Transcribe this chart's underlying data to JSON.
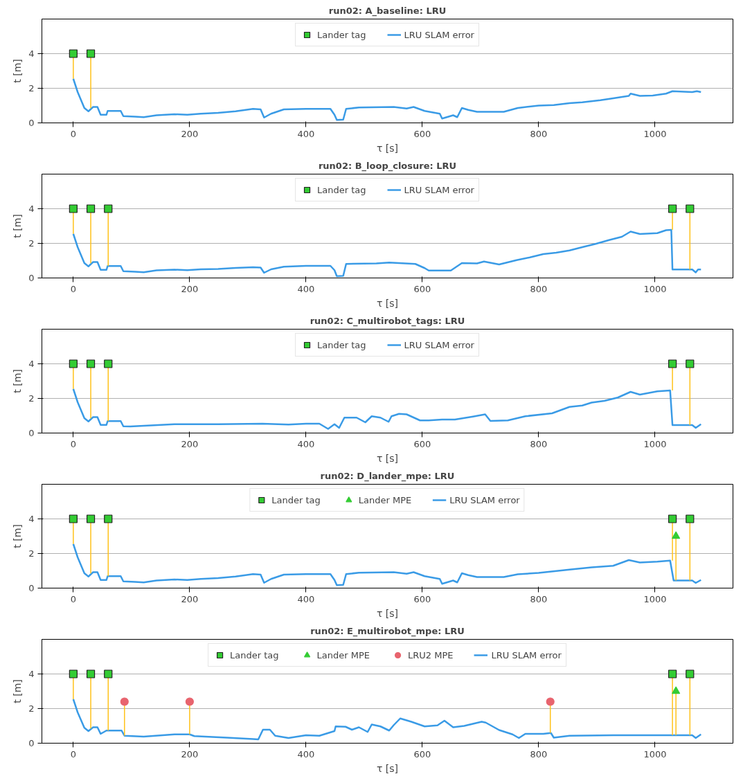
{
  "chart_data": [
    {
      "type": "line",
      "title": "run02: A_baseline: LRU",
      "xlabel": "τ [s]",
      "ylabel": "t [m]",
      "xlim": [
        -54,
        1134
      ],
      "xticks": [
        0,
        200,
        400,
        600,
        800,
        1000
      ],
      "ylim": [
        0,
        6
      ],
      "yticks": [
        0,
        2,
        4
      ],
      "grid": "y",
      "legend": "top",
      "series": [
        {
          "name": "Lander tag",
          "type": "scatter",
          "marker": "square",
          "color": "#33cc33",
          "x": [
            0,
            30
          ],
          "values": [
            4,
            4
          ],
          "errors": [
            [
              2.55,
              4
            ],
            [
              0.85,
              4
            ]
          ]
        },
        {
          "name": "LRU SLAM error",
          "color": "#3a9be6",
          "x": [
            0,
            7.5,
            19,
            26,
            34,
            41.5,
            47,
            57,
            59,
            81.5,
            86,
            106,
            121,
            143,
            174,
            196,
            219,
            249,
            279,
            309,
            322,
            328,
            340,
            362,
            400,
            442,
            449,
            453,
            464,
            469,
            491,
            551,
            573,
            585,
            604,
            630,
            634,
            653,
            660,
            668,
            679,
            694,
            740,
            764,
            800,
            826,
            853,
            875,
            906,
            928,
            955,
            958,
            974,
            996,
            1019,
            1030,
            1064,
            1072,
            1079
          ],
          "values": [
            2.55,
            1.78,
            0.86,
            0.67,
            0.92,
            0.92,
            0.47,
            0.47,
            0.69,
            0.69,
            0.39,
            0.36,
            0.33,
            0.44,
            0.5,
            0.47,
            0.53,
            0.58,
            0.67,
            0.81,
            0.78,
            0.31,
            0.53,
            0.78,
            0.81,
            0.81,
            0.47,
            0.17,
            0.19,
            0.81,
            0.89,
            0.92,
            0.83,
            0.92,
            0.69,
            0.53,
            0.25,
            0.44,
            0.33,
            0.86,
            0.75,
            0.64,
            0.64,
            0.86,
            1.0,
            1.03,
            1.14,
            1.19,
            1.31,
            1.42,
            1.56,
            1.69,
            1.56,
            1.58,
            1.69,
            1.83,
            1.78,
            1.83,
            1.78
          ]
        }
      ]
    },
    {
      "type": "line",
      "title": "run02: B_loop_closure: LRU",
      "xlabel": "τ [s]",
      "ylabel": "t [m]",
      "xlim": [
        -54,
        1134
      ],
      "xticks": [
        0,
        200,
        400,
        600,
        800,
        1000
      ],
      "ylim": [
        0,
        6
      ],
      "yticks": [
        0,
        2,
        4
      ],
      "grid": "y",
      "legend": "top",
      "series": [
        {
          "name": "Lander tag",
          "type": "scatter",
          "marker": "square",
          "color": "#33cc33",
          "x": [
            0,
            30,
            60,
            1030,
            1060
          ],
          "values": [
            4,
            4,
            4,
            4,
            4
          ],
          "errors": [
            [
              2.55,
              4
            ],
            [
              0.85,
              4
            ],
            [
              0.69,
              4
            ],
            [
              2.78,
              4
            ],
            [
              0.49,
              4
            ]
          ]
        },
        {
          "name": "LRU SLAM error",
          "color": "#3a9be6",
          "x": [
            0,
            7.5,
            19,
            26,
            34,
            41.5,
            47,
            57,
            59,
            81.5,
            86,
            106,
            121,
            143,
            174,
            196,
            219,
            249,
            279,
            309,
            322,
            328,
            340,
            362,
            400,
            442,
            449,
            453,
            464,
            469,
            521,
            543,
            588,
            604,
            611,
            649,
            668,
            694,
            706,
            732,
            762,
            785,
            808,
            830,
            853,
            875,
            898,
            921,
            943,
            958,
            974,
            1004,
            1019,
            1028,
            1030,
            1064,
            1070,
            1074,
            1079
          ],
          "values": [
            2.55,
            1.78,
            0.86,
            0.67,
            0.92,
            0.92,
            0.47,
            0.47,
            0.69,
            0.69,
            0.39,
            0.36,
            0.33,
            0.44,
            0.48,
            0.45,
            0.5,
            0.52,
            0.58,
            0.62,
            0.6,
            0.3,
            0.5,
            0.65,
            0.7,
            0.7,
            0.45,
            0.1,
            0.12,
            0.81,
            0.84,
            0.89,
            0.81,
            0.57,
            0.43,
            0.43,
            0.86,
            0.84,
            0.95,
            0.78,
            1.03,
            1.19,
            1.38,
            1.46,
            1.59,
            1.78,
            1.97,
            2.19,
            2.38,
            2.68,
            2.54,
            2.59,
            2.76,
            2.78,
            0.49,
            0.49,
            0.32,
            0.49,
            0.49
          ]
        }
      ]
    },
    {
      "type": "line",
      "title": "run02: C_multirobot_tags: LRU",
      "xlabel": "τ [s]",
      "ylabel": "t [m]",
      "xlim": [
        -54,
        1134
      ],
      "xticks": [
        0,
        200,
        400,
        600,
        800,
        1000
      ],
      "ylim": [
        0,
        6
      ],
      "yticks": [
        0,
        2,
        4
      ],
      "grid": "y",
      "legend": "top",
      "series": [
        {
          "name": "Lander tag",
          "type": "scatter",
          "marker": "square",
          "color": "#33cc33",
          "x": [
            0,
            30,
            60,
            1030,
            1060
          ],
          "values": [
            4,
            4,
            4,
            4,
            4
          ],
          "errors": [
            [
              2.55,
              4
            ],
            [
              0.85,
              4
            ],
            [
              0.69,
              4
            ],
            [
              2.46,
              4
            ],
            [
              0.46,
              4
            ]
          ]
        },
        {
          "name": "LRU SLAM error",
          "color": "#3a9be6",
          "x": [
            0,
            7.5,
            19,
            26,
            34,
            41.5,
            47,
            57,
            59,
            81.5,
            86,
            98,
            174,
            249,
            325,
            370,
            400,
            423,
            438,
            449,
            457,
            466,
            487,
            502,
            513,
            528,
            542,
            547,
            560,
            573,
            596,
            611,
            634,
            656,
            687,
            708,
            717,
            747,
            777,
            823,
            853,
            875,
            891,
            913,
            936,
            958,
            974,
            1004,
            1026,
            1030,
            1064,
            1070,
            1079
          ],
          "values": [
            2.55,
            1.78,
            0.86,
            0.67,
            0.92,
            0.92,
            0.47,
            0.47,
            0.69,
            0.69,
            0.39,
            0.38,
            0.51,
            0.51,
            0.54,
            0.49,
            0.54,
            0.54,
            0.24,
            0.51,
            0.3,
            0.89,
            0.89,
            0.62,
            0.97,
            0.89,
            0.65,
            0.97,
            1.11,
            1.08,
            0.73,
            0.73,
            0.78,
            0.78,
            0.95,
            1.08,
            0.7,
            0.73,
            0.97,
            1.14,
            1.51,
            1.59,
            1.76,
            1.86,
            2.05,
            2.38,
            2.22,
            2.41,
            2.46,
            0.46,
            0.46,
            0.3,
            0.51
          ]
        }
      ]
    },
    {
      "type": "line",
      "title": "run02: D_lander_mpe: LRU",
      "xlabel": "τ [s]",
      "ylabel": "t [m]",
      "xlim": [
        -54,
        1134
      ],
      "xticks": [
        0,
        200,
        400,
        600,
        800,
        1000
      ],
      "ylim": [
        0,
        6
      ],
      "yticks": [
        0,
        2,
        4
      ],
      "grid": "y",
      "legend": "top",
      "series": [
        {
          "name": "Lander tag",
          "type": "scatter",
          "marker": "square",
          "color": "#33cc33",
          "x": [
            0,
            30,
            60,
            1030,
            1060
          ],
          "values": [
            4,
            4,
            4,
            4,
            4
          ],
          "errors": [
            [
              2.55,
              4
            ],
            [
              0.85,
              4
            ],
            [
              0.69,
              4
            ],
            [
              1.59,
              4
            ],
            [
              0.44,
              4
            ]
          ]
        },
        {
          "name": "Lander MPE",
          "type": "scatter",
          "marker": "triangle",
          "color": "#33cc33",
          "x": [
            1036
          ],
          "values": [
            3
          ],
          "errors": [
            [
              0.44,
              3
            ]
          ]
        },
        {
          "name": "LRU SLAM error",
          "color": "#3a9be6",
          "x": [
            0,
            7.5,
            19,
            26,
            34,
            41.5,
            47,
            57,
            59,
            81.5,
            86,
            106,
            121,
            143,
            174,
            196,
            219,
            249,
            279,
            309,
            322,
            328,
            340,
            362,
            400,
            442,
            449,
            453,
            464,
            469,
            491,
            551,
            573,
            585,
            604,
            630,
            634,
            653,
            660,
            668,
            679,
            694,
            740,
            764,
            800,
            853,
            891,
            928,
            955,
            974,
            1004,
            1026,
            1032,
            1064,
            1070,
            1079
          ],
          "values": [
            2.55,
            1.78,
            0.86,
            0.67,
            0.92,
            0.92,
            0.47,
            0.47,
            0.69,
            0.69,
            0.39,
            0.36,
            0.33,
            0.44,
            0.5,
            0.47,
            0.53,
            0.58,
            0.67,
            0.81,
            0.78,
            0.31,
            0.53,
            0.78,
            0.81,
            0.81,
            0.47,
            0.17,
            0.19,
            0.81,
            0.89,
            0.92,
            0.83,
            0.92,
            0.69,
            0.53,
            0.25,
            0.44,
            0.33,
            0.86,
            0.75,
            0.64,
            0.64,
            0.8,
            0.88,
            1.07,
            1.2,
            1.29,
            1.62,
            1.48,
            1.53,
            1.59,
            0.44,
            0.44,
            0.3,
            0.47
          ]
        }
      ]
    },
    {
      "type": "line",
      "title": "run02: E_multirobot_mpe: LRU",
      "xlabel": "τ [s]",
      "ylabel": "t [m]",
      "xlim": [
        -54,
        1134
      ],
      "xticks": [
        0,
        200,
        400,
        600,
        800,
        1000
      ],
      "ylim": [
        0,
        6
      ],
      "yticks": [
        0,
        2,
        4
      ],
      "grid": "y",
      "legend": "top",
      "series": [
        {
          "name": "Lander tag",
          "type": "scatter",
          "marker": "square",
          "color": "#33cc33",
          "x": [
            0,
            30,
            60,
            1030,
            1060
          ],
          "values": [
            4,
            4,
            4,
            4,
            4
          ],
          "errors": [
            [
              2.54,
              4
            ],
            [
              0.85,
              4
            ],
            [
              0.73,
              4
            ],
            [
              0.46,
              4
            ],
            [
              0.46,
              4
            ]
          ]
        },
        {
          "name": "Lander MPE",
          "type": "scatter",
          "marker": "triangle",
          "color": "#33cc33",
          "x": [
            1036
          ],
          "values": [
            3
          ],
          "errors": [
            [
              0.46,
              3
            ]
          ]
        },
        {
          "name": "LRU2 MPE",
          "type": "scatter",
          "marker": "circle",
          "color": "#e8646e",
          "x": [
            88,
            200,
            820
          ],
          "values": [
            2.4,
            2.4,
            2.4
          ],
          "errors": [
            [
              0.43,
              2.4
            ],
            [
              0.51,
              2.4
            ],
            [
              0.59,
              2.4
            ]
          ]
        },
        {
          "name": "LRU SLAM error",
          "color": "#3a9be6",
          "x": [
            0,
            7.5,
            19,
            26,
            34,
            41.5,
            47,
            57,
            83,
            88,
            121,
            174,
            200,
            208,
            264,
            309,
            318,
            326,
            338,
            347,
            370,
            400,
            423,
            449,
            451,
            468,
            479,
            491,
            506,
            513,
            528,
            543,
            551,
            562,
            581,
            604,
            626,
            638,
            653,
            672,
            702,
            709,
            732,
            755,
            766,
            777,
            808,
            821,
            826,
            853,
            928,
            1004,
            1064,
            1070,
            1079
          ],
          "values": [
            2.54,
            1.78,
            0.89,
            0.7,
            0.92,
            0.92,
            0.54,
            0.73,
            0.73,
            0.43,
            0.38,
            0.51,
            0.51,
            0.41,
            0.32,
            0.24,
            0.22,
            0.78,
            0.78,
            0.43,
            0.3,
            0.46,
            0.43,
            0.7,
            0.97,
            0.95,
            0.78,
            0.92,
            0.65,
            1.08,
            0.97,
            0.73,
            1.05,
            1.43,
            1.24,
            0.97,
            1.03,
            1.3,
            0.92,
            1.0,
            1.24,
            1.19,
            0.76,
            0.51,
            0.3,
            0.54,
            0.54,
            0.59,
            0.32,
            0.43,
            0.46,
            0.46,
            0.46,
            0.3,
            0.51
          ]
        }
      ]
    }
  ]
}
